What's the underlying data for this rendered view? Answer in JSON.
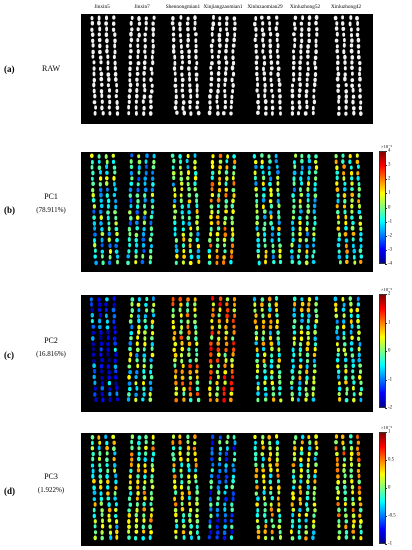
{
  "varieties": [
    "Jinxin5",
    "Jinxin7",
    "Shennongmian1",
    "Xinjiangzaomian1",
    "Xinluzaomian29",
    "Xinluzhong52",
    "Xinluzhong42"
  ],
  "panels": [
    {
      "id": "a",
      "label": "(a)",
      "name": "RAW",
      "variance": "",
      "colorbar": null
    },
    {
      "id": "b",
      "label": "(b)",
      "name": "PC1",
      "variance": "(78.911%)",
      "colorbar": {
        "exponent": "×10⁻³",
        "ticks": [
          "4",
          "3",
          "2",
          "1",
          "0",
          "-1",
          "-2",
          "-3",
          "-4"
        ]
      }
    },
    {
      "id": "c",
      "label": "(c)",
      "name": "PC2",
      "variance": "(16.816%)",
      "colorbar": {
        "exponent": "×10⁻³",
        "ticks": [
          "2",
          "1",
          "0",
          "-1",
          "-2"
        ]
      }
    },
    {
      "id": "d",
      "label": "(d)",
      "name": "PC3",
      "variance": "(1.922%)",
      "colorbar": {
        "exponent": "×10⁻³",
        "ticks": [
          "1",
          "0.5",
          "0",
          "-0.5",
          "-1"
        ]
      }
    }
  ],
  "colors": {
    "background": "#000000",
    "raw_seed": "#f2f2f2",
    "jet": [
      "#00008f",
      "#0000ff",
      "#0080ff",
      "#00ffff",
      "#80ff80",
      "#ffff00",
      "#ff8000",
      "#ff0000",
      "#800000"
    ]
  },
  "seed_tint": {
    "b": [
      0.42,
      0.4,
      0.48,
      0.58,
      0.46,
      0.45,
      0.52
    ],
    "c": [
      0.18,
      0.45,
      0.62,
      0.68,
      0.52,
      0.5,
      0.47
    ],
    "d": [
      0.5,
      0.55,
      0.55,
      0.3,
      0.55,
      0.52,
      0.62
    ]
  }
}
